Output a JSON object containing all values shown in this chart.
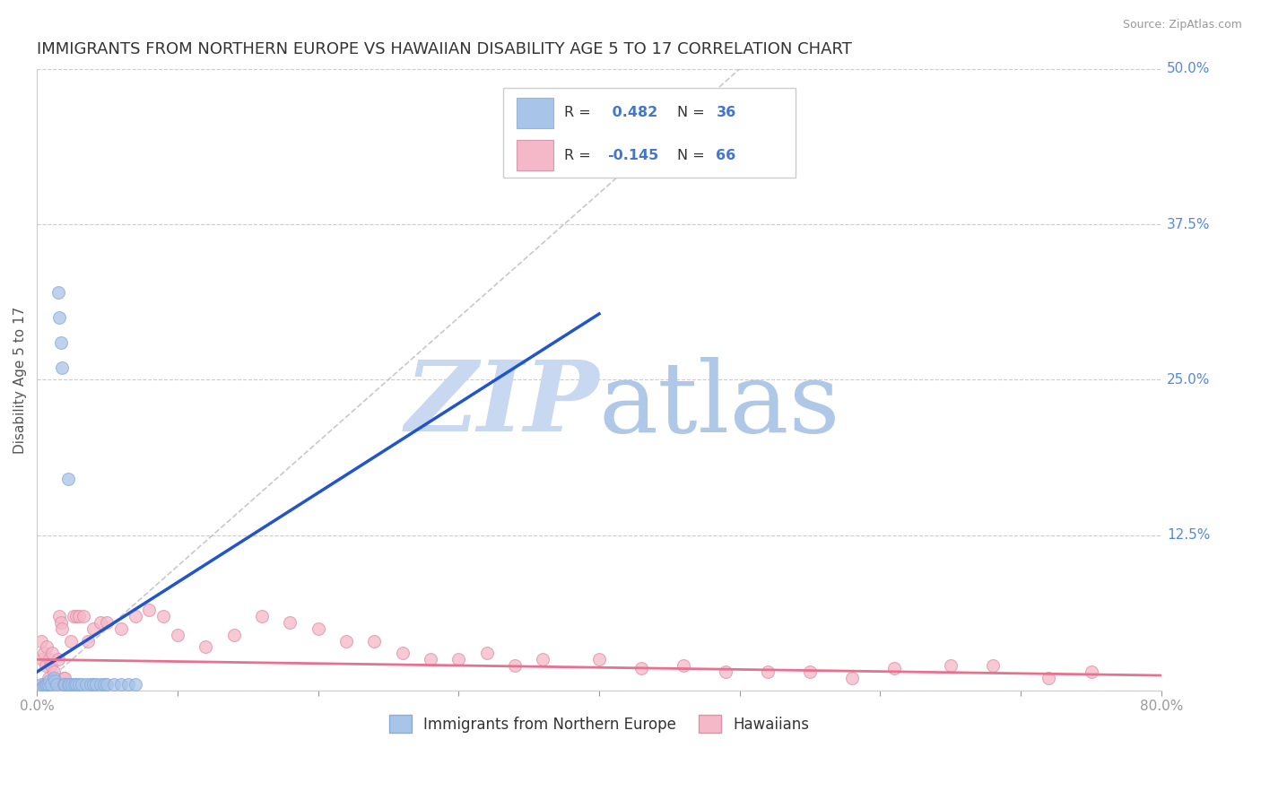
{
  "title": "IMMIGRANTS FROM NORTHERN EUROPE VS HAWAIIAN DISABILITY AGE 5 TO 17 CORRELATION CHART",
  "source": "Source: ZipAtlas.com",
  "ylabel": "Disability Age 5 to 17",
  "xlim": [
    0,
    0.8
  ],
  "ylim": [
    0,
    0.5
  ],
  "xticks": [
    0.0,
    0.1,
    0.2,
    0.3,
    0.4,
    0.5,
    0.6,
    0.7,
    0.8
  ],
  "yticks": [
    0.0,
    0.125,
    0.25,
    0.375,
    0.5
  ],
  "ytick_labels": [
    "",
    "12.5%",
    "25.0%",
    "37.5%",
    "50.0%"
  ],
  "xtick_labels": [
    "0.0%",
    "",
    "",
    "",
    "",
    "",
    "",
    "",
    "80.0%"
  ],
  "blue_R": 0.482,
  "blue_N": 36,
  "pink_R": -0.145,
  "pink_N": 66,
  "blue_color": "#a8c4e8",
  "pink_color": "#f4b8c8",
  "blue_line_color": "#2255cc",
  "pink_line_color": "#e87090",
  "blue_label": "Immigrants from Northern Europe",
  "pink_label": "Hawaiians",
  "watermark_zip_color": "#c8d8f0",
  "watermark_atlas_color": "#b0c8e8",
  "blue_scatter_x": [
    0.003,
    0.004,
    0.005,
    0.006,
    0.007,
    0.008,
    0.009,
    0.01,
    0.012,
    0.013,
    0.014,
    0.015,
    0.016,
    0.017,
    0.018,
    0.019,
    0.02,
    0.022,
    0.023,
    0.025,
    0.027,
    0.028,
    0.03,
    0.032,
    0.035,
    0.038,
    0.04,
    0.042,
    0.045,
    0.048,
    0.05,
    0.055,
    0.06,
    0.065,
    0.07,
    0.022
  ],
  "blue_scatter_y": [
    0.005,
    0.003,
    0.004,
    0.004,
    0.005,
    0.005,
    0.008,
    0.005,
    0.01,
    0.008,
    0.005,
    0.32,
    0.3,
    0.28,
    0.26,
    0.005,
    0.005,
    0.005,
    0.005,
    0.005,
    0.005,
    0.005,
    0.005,
    0.005,
    0.005,
    0.005,
    0.005,
    0.005,
    0.005,
    0.005,
    0.005,
    0.005,
    0.005,
    0.005,
    0.005,
    0.17
  ],
  "pink_scatter_x": [
    0.003,
    0.004,
    0.005,
    0.006,
    0.007,
    0.008,
    0.009,
    0.01,
    0.011,
    0.012,
    0.013,
    0.015,
    0.016,
    0.017,
    0.018,
    0.019,
    0.02,
    0.022,
    0.024,
    0.026,
    0.028,
    0.03,
    0.033,
    0.036,
    0.04,
    0.045,
    0.05,
    0.06,
    0.07,
    0.08,
    0.09,
    0.1,
    0.12,
    0.14,
    0.16,
    0.18,
    0.2,
    0.22,
    0.24,
    0.26,
    0.28,
    0.3,
    0.32,
    0.34,
    0.36,
    0.4,
    0.43,
    0.46,
    0.49,
    0.52,
    0.55,
    0.58,
    0.61,
    0.65,
    0.68,
    0.72,
    0.75,
    0.005,
    0.008,
    0.012,
    0.015,
    0.02,
    0.025,
    0.03,
    0.035,
    0.04
  ],
  "pink_scatter_y": [
    0.04,
    0.025,
    0.03,
    0.02,
    0.035,
    0.01,
    0.025,
    0.02,
    0.03,
    0.015,
    0.005,
    0.025,
    0.06,
    0.055,
    0.05,
    0.01,
    0.01,
    0.005,
    0.04,
    0.06,
    0.06,
    0.06,
    0.06,
    0.04,
    0.05,
    0.055,
    0.055,
    0.05,
    0.06,
    0.065,
    0.06,
    0.045,
    0.035,
    0.045,
    0.06,
    0.055,
    0.05,
    0.04,
    0.04,
    0.03,
    0.025,
    0.025,
    0.03,
    0.02,
    0.025,
    0.025,
    0.018,
    0.02,
    0.015,
    0.015,
    0.015,
    0.01,
    0.018,
    0.02,
    0.02,
    0.01,
    0.015,
    0.005,
    0.005,
    0.005,
    0.005,
    0.005,
    -0.01,
    -0.005,
    -0.008,
    -0.01
  ]
}
